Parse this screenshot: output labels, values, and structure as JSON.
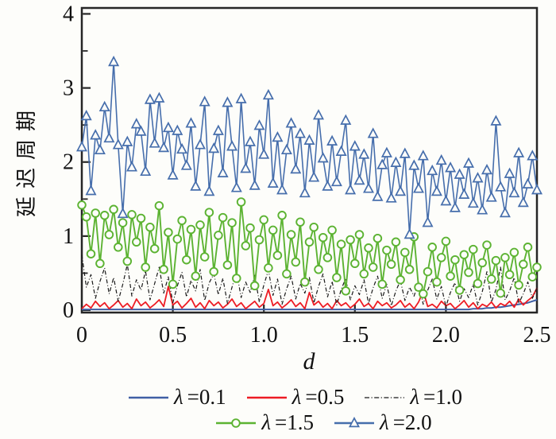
{
  "figure": {
    "background": "#fdfdfa",
    "axis_color": "#262626"
  },
  "chart_data": {
    "type": "line",
    "title": "",
    "xlabel": "d",
    "ylabel": "延迟周期",
    "xlim": [
      0,
      2.5
    ],
    "ylim": [
      -0.032,
      4.08
    ],
    "grid": false,
    "legend_position": "bottom",
    "x_ticks": {
      "major": [
        0,
        0.5,
        1.0,
        1.5,
        2.0,
        2.5
      ],
      "labels": [
        "0",
        "0.5",
        "1.0",
        "1.5",
        "2.0",
        "2.5"
      ]
    },
    "y_ticks": {
      "major": [
        0,
        1,
        2,
        3,
        4
      ],
      "labels": [
        "0",
        "1",
        "2",
        "3",
        "4"
      ],
      "minor": [
        0.5,
        1.5,
        2.5,
        3.5
      ]
    },
    "x": {
      "start": 0,
      "step": 0.025,
      "count": 101
    },
    "series": [
      {
        "name": "λ=0.1",
        "color": "#3f5fa5",
        "line": "solid",
        "width": 2.0,
        "marker": "none",
        "values": [
          0.01,
          0.01,
          0.01,
          0.01,
          0.01,
          0.01,
          0.01,
          0.01,
          0.01,
          0.01,
          0.01,
          0.01,
          0.01,
          0.01,
          0.01,
          0.01,
          0.01,
          0.01,
          0.01,
          0.01,
          0.01,
          0.01,
          0.01,
          0.01,
          0.01,
          0.01,
          0.01,
          0.01,
          0.01,
          0.01,
          0.01,
          0.01,
          0.01,
          0.01,
          0.01,
          0.01,
          0.01,
          0.01,
          0.01,
          0.01,
          0.01,
          0.01,
          0.01,
          0.01,
          0.01,
          0.01,
          0.01,
          0.01,
          0.01,
          0.01,
          0.01,
          0.01,
          0.01,
          0.01,
          0.01,
          0.01,
          0.01,
          0.01,
          0.01,
          0.01,
          0.01,
          0.01,
          0.01,
          0.01,
          0.01,
          0.01,
          0.01,
          0.01,
          0.01,
          0.01,
          0.01,
          0.01,
          0.01,
          0.01,
          0.01,
          0.01,
          0.01,
          0.01,
          0.01,
          0.01,
          0.01,
          0.01,
          0.01,
          0.01,
          0.01,
          0.01,
          0.02,
          0.02,
          0.02,
          0.03,
          0.03,
          0.04,
          0.04,
          0.05,
          0.06,
          0.07,
          0.08,
          0.09,
          0.1,
          0.12,
          0.14
        ]
      },
      {
        "name": "λ=0.5",
        "color": "#ed1c24",
        "line": "solid",
        "width": 1.8,
        "marker": "none",
        "values": [
          0.02,
          0.08,
          0.03,
          0.12,
          0.05,
          0.1,
          0.02,
          0.07,
          0.13,
          0.04,
          0.09,
          0.02,
          0.15,
          0.06,
          0.11,
          0.03,
          0.08,
          0.14,
          0.05,
          0.32,
          0.07,
          0.12,
          0.03,
          0.09,
          0.16,
          0.04,
          0.1,
          0.02,
          0.13,
          0.06,
          0.11,
          0.03,
          0.08,
          0.15,
          0.05,
          0.1,
          0.02,
          0.07,
          0.12,
          0.04,
          0.09,
          0.28,
          0.06,
          0.11,
          0.03,
          0.08,
          0.14,
          0.05,
          0.1,
          0.02,
          0.24,
          0.07,
          0.12,
          0.04,
          0.09,
          0.02,
          0.13,
          0.06,
          0.1,
          0.03,
          0.08,
          0.15,
          0.05,
          0.09,
          0.02,
          0.12,
          0.06,
          0.1,
          0.03,
          0.07,
          0.13,
          0.04,
          0.09,
          0.02,
          0.11,
          0.26,
          0.05,
          0.08,
          0.03,
          0.12,
          0.06,
          0.09,
          0.02,
          0.07,
          0.13,
          0.04,
          0.1,
          0.02,
          0.08,
          0.05,
          0.11,
          0.03,
          0.09,
          0.06,
          0.12,
          0.04,
          0.15,
          0.07,
          0.13,
          0.18,
          0.3
        ]
      },
      {
        "name": "λ=1.0",
        "color": "#1a1a1a",
        "line": "dashdot",
        "width": 1.2,
        "marker": "none",
        "values": [
          0.75,
          0.31,
          0.48,
          0.16,
          0.39,
          0.57,
          0.22,
          0.44,
          0.12,
          0.35,
          0.62,
          0.19,
          0.41,
          0.27,
          0.53,
          0.14,
          0.36,
          0.58,
          0.23,
          0.45,
          0.1,
          0.33,
          0.51,
          0.18,
          0.4,
          0.26,
          0.55,
          0.13,
          0.37,
          0.49,
          0.21,
          0.43,
          0.09,
          0.31,
          0.52,
          0.17,
          0.38,
          0.24,
          0.47,
          0.11,
          0.34,
          0.54,
          0.2,
          0.42,
          0.08,
          0.29,
          0.46,
          0.15,
          0.36,
          0.23,
          0.44,
          0.1,
          0.32,
          0.49,
          0.18,
          0.39,
          0.07,
          0.28,
          0.43,
          0.14,
          0.33,
          0.21,
          0.41,
          0.09,
          0.3,
          0.46,
          0.16,
          0.35,
          0.06,
          0.26,
          0.4,
          0.13,
          0.31,
          0.19,
          0.38,
          0.08,
          0.27,
          0.42,
          0.15,
          0.32,
          0.05,
          0.24,
          0.37,
          0.12,
          0.29,
          0.17,
          0.35,
          0.07,
          0.25,
          0.52,
          0.11,
          0.28,
          0.58,
          0.14,
          0.26,
          0.44,
          0.09,
          0.22,
          0.38,
          0.16,
          0.3
        ]
      },
      {
        "name": "λ=1.5",
        "color": "#5cb332",
        "line": "solid",
        "width": 1.9,
        "marker": "circle",
        "values": [
          1.42,
          1.26,
          0.76,
          1.31,
          0.63,
          1.28,
          1.02,
          1.36,
          0.85,
          1.18,
          0.66,
          1.29,
          0.92,
          1.24,
          0.58,
          1.12,
          0.83,
          1.41,
          0.55,
          1.05,
          0.35,
          0.96,
          1.21,
          0.68,
          1.09,
          0.46,
          1.15,
          0.72,
          1.32,
          0.52,
          1.01,
          1.25,
          0.61,
          1.18,
          0.43,
          1.46,
          0.87,
          1.11,
          0.33,
          0.95,
          1.22,
          0.57,
          1.08,
          0.74,
          1.28,
          0.49,
          1.02,
          0.65,
          1.19,
          0.38,
          0.92,
          1.12,
          0.55,
          0.98,
          0.71,
          1.08,
          0.44,
          0.89,
          0.26,
          0.95,
          0.63,
          1.02,
          0.49,
          0.84,
          0.58,
          0.97,
          0.35,
          0.81,
          0.62,
          0.92,
          0.41,
          0.78,
          0.55,
          0.99,
          0.31,
          0.22,
          0.52,
          0.85,
          0.38,
          0.71,
          0.93,
          0.46,
          0.68,
          0.27,
          0.75,
          0.51,
          0.82,
          0.36,
          0.64,
          0.88,
          0.42,
          0.67,
          0.23,
          0.71,
          0.48,
          0.78,
          0.34,
          0.62,
          0.85,
          0.45,
          0.58
        ]
      },
      {
        "name": "λ=2.0",
        "color": "#466eac",
        "line": "solid",
        "width": 1.6,
        "marker": "triangle",
        "values": [
          2.2,
          2.62,
          1.61,
          2.36,
          2.16,
          2.74,
          2.32,
          3.35,
          2.23,
          1.3,
          2.27,
          1.93,
          2.51,
          2.41,
          1.87,
          2.84,
          2.25,
          2.86,
          2.19,
          2.46,
          1.82,
          2.42,
          2.17,
          1.95,
          2.52,
          1.67,
          2.23,
          2.81,
          1.6,
          2.18,
          2.42,
          1.85,
          2.8,
          2.21,
          1.65,
          2.85,
          1.91,
          2.27,
          1.68,
          2.49,
          2.1,
          2.9,
          1.71,
          2.33,
          1.62,
          2.16,
          2.52,
          1.9,
          2.38,
          1.58,
          2.29,
          1.79,
          2.63,
          2.05,
          1.67,
          2.28,
          1.73,
          2.14,
          2.56,
          1.62,
          2.21,
          1.75,
          2.1,
          1.64,
          2.38,
          1.53,
          1.96,
          2.12,
          1.51,
          1.99,
          1.6,
          2.11,
          1.02,
          1.95,
          1.64,
          2.08,
          1.18,
          1.88,
          1.6,
          2.02,
          1.47,
          1.92,
          1.38,
          1.83,
          1.56,
          1.98,
          1.44,
          1.78,
          1.35,
          1.89,
          1.52,
          2.55,
          1.66,
          1.31,
          1.84,
          1.58,
          2.12,
          1.45,
          1.7,
          2.08,
          1.62
        ]
      }
    ]
  },
  "legend": {
    "rows": [
      {
        "items": [
          {
            "series": 0,
            "sym": "λ",
            "rest": "=0.1"
          },
          {
            "series": 1,
            "sym": "λ",
            "rest": "=0.5"
          },
          {
            "series": 2,
            "sym": "λ",
            "rest": "=1.0"
          }
        ]
      },
      {
        "items": [
          {
            "series": 3,
            "sym": "λ",
            "rest": "=1.5"
          },
          {
            "series": 4,
            "sym": "λ",
            "rest": "=2.0"
          }
        ]
      }
    ]
  }
}
